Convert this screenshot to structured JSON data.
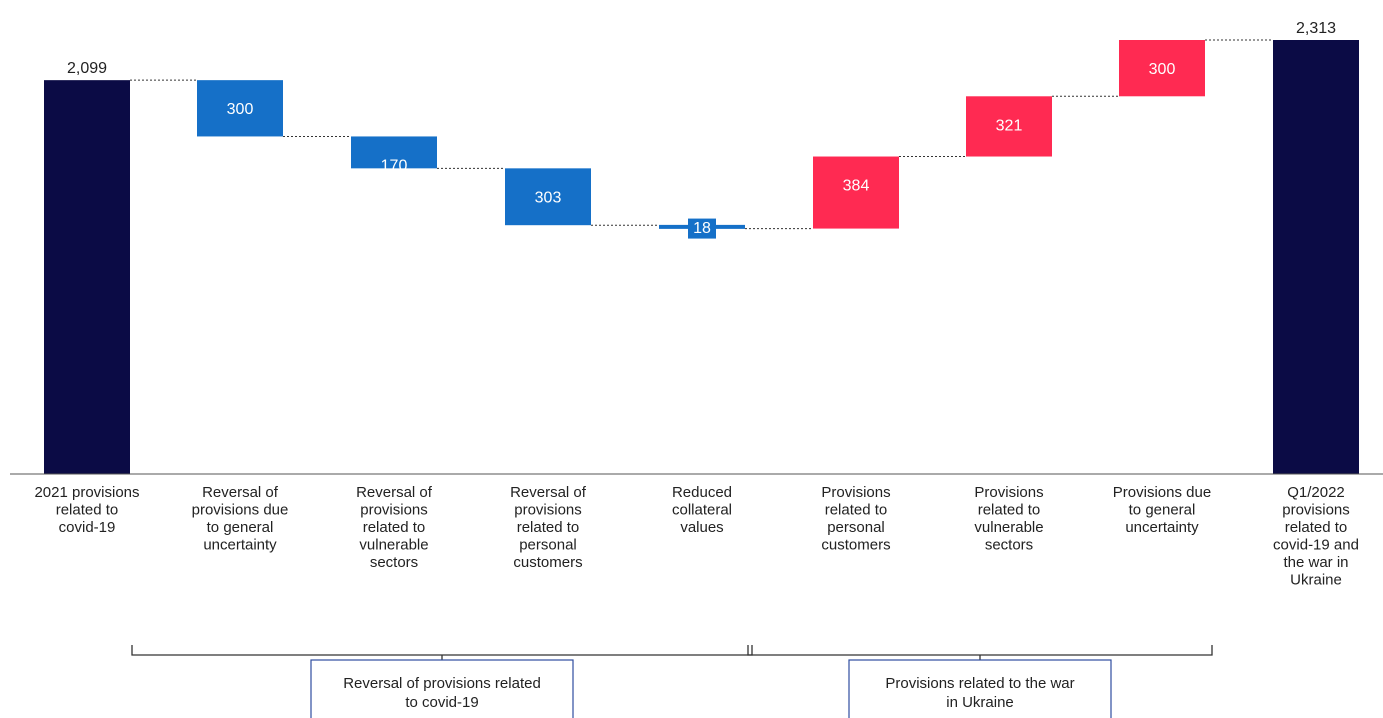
{
  "chart_data": {
    "type": "waterfall",
    "ylim": [
      0,
      2313
    ],
    "colors": {
      "total": "#0b0b45",
      "decrease": "#1570c8",
      "increase": "#ff2a52"
    },
    "steps": [
      {
        "label": "2021 provisions related to covid-19",
        "value": 2099,
        "kind": "total",
        "value_label": "2,099"
      },
      {
        "label": "Reversal of provisions due to general uncertainty",
        "value": -300,
        "kind": "decrease",
        "value_label": "300"
      },
      {
        "label": "Reversal of provisions related to vulnerable sectors",
        "value": -170,
        "kind": "decrease",
        "value_label": "170"
      },
      {
        "label": "Reversal of provisions related to personal customers",
        "value": -303,
        "kind": "decrease",
        "value_label": "303"
      },
      {
        "label": "Reduced collateral values",
        "value": -18,
        "kind": "decrease",
        "value_label": "18"
      },
      {
        "label": "Provisions related to personal customers",
        "value": 384,
        "kind": "increase",
        "value_label": "384"
      },
      {
        "label": "Provisions related to vulnerable sectors",
        "value": 321,
        "kind": "increase",
        "value_label": "321"
      },
      {
        "label": "Provisions due to general uncertainty",
        "value": 300,
        "kind": "increase",
        "value_label": "300"
      },
      {
        "label": "Q1/2022 provisions related to covid-19 and the war in Ukraine",
        "value": 2313,
        "kind": "total",
        "value_label": "2,313"
      }
    ],
    "groups": [
      {
        "label": "Reversal of provisions related to covid-19",
        "from": 1,
        "to": 4
      },
      {
        "label": "Provisions related to the war in Ukraine",
        "from": 5,
        "to": 7
      }
    ]
  }
}
